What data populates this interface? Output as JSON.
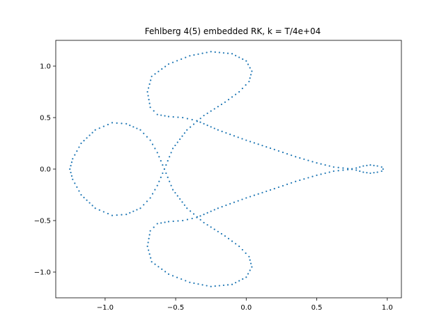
{
  "chart_data": {
    "type": "scatter",
    "title": "Fehlberg 4(5) embedded RK, k = T/4e+04",
    "xlabel": "",
    "ylabel": "",
    "xlim": [
      -1.35,
      1.1
    ],
    "ylim": [
      -1.25,
      1.25
    ],
    "x_ticks": [
      {
        "value": -1.0,
        "label": "−1.0"
      },
      {
        "value": -0.5,
        "label": "−0.5"
      },
      {
        "value": 0.0,
        "label": "0.0"
      },
      {
        "value": 0.5,
        "label": "0.5"
      },
      {
        "value": 1.0,
        "label": "1.0"
      }
    ],
    "y_ticks": [
      {
        "value": -1.0,
        "label": "−1.0"
      },
      {
        "value": -0.5,
        "label": "−0.5"
      },
      {
        "value": 0.0,
        "label": "0.0"
      },
      {
        "value": 0.5,
        "label": "0.5"
      },
      {
        "value": 1.0,
        "label": "1.0"
      }
    ],
    "grid": false,
    "color": "#1f77b4",
    "series": [
      {
        "points": [
          [
            0.97,
            0.0
          ],
          [
            0.96,
            0.02
          ],
          [
            0.93,
            0.03
          ],
          [
            0.88,
            0.04
          ],
          [
            0.83,
            0.03
          ],
          [
            0.78,
            0.01
          ],
          [
            0.72,
            -0.005
          ],
          [
            0.62,
            -0.02
          ],
          [
            0.5,
            -0.06
          ],
          [
            0.35,
            -0.12
          ],
          [
            0.2,
            -0.19
          ],
          [
            0.0,
            -0.28
          ],
          [
            -0.2,
            -0.38
          ],
          [
            -0.35,
            -0.47
          ],
          [
            -0.45,
            -0.5
          ],
          [
            -0.55,
            -0.51
          ],
          [
            -0.63,
            -0.53
          ],
          [
            -0.68,
            -0.6
          ],
          [
            -0.7,
            -0.75
          ],
          [
            -0.67,
            -0.9
          ],
          [
            -0.55,
            -1.02
          ],
          [
            -0.4,
            -1.1
          ],
          [
            -0.25,
            -1.14
          ],
          [
            -0.1,
            -1.12
          ],
          [
            0.0,
            -1.05
          ],
          [
            0.04,
            -0.95
          ],
          [
            0.02,
            -0.85
          ],
          [
            -0.05,
            -0.75
          ],
          [
            -0.15,
            -0.65
          ],
          [
            -0.3,
            -0.52
          ],
          [
            -0.42,
            -0.38
          ],
          [
            -0.52,
            -0.2
          ],
          [
            -0.58,
            0.0
          ],
          [
            -0.63,
            0.16
          ],
          [
            -0.68,
            0.28
          ],
          [
            -0.75,
            0.38
          ],
          [
            -0.85,
            0.44
          ],
          [
            -0.95,
            0.45
          ],
          [
            -1.07,
            0.38
          ],
          [
            -1.17,
            0.25
          ],
          [
            -1.23,
            0.1
          ],
          [
            -1.25,
            0.0
          ],
          [
            -1.23,
            -0.1
          ],
          [
            -1.17,
            -0.25
          ],
          [
            -1.07,
            -0.38
          ],
          [
            -0.95,
            -0.45
          ],
          [
            -0.85,
            -0.44
          ],
          [
            -0.75,
            -0.38
          ],
          [
            -0.68,
            -0.28
          ],
          [
            -0.63,
            -0.16
          ],
          [
            -0.58,
            0.0
          ],
          [
            -0.52,
            0.2
          ],
          [
            -0.42,
            0.38
          ],
          [
            -0.3,
            0.52
          ],
          [
            -0.15,
            0.65
          ],
          [
            -0.05,
            0.75
          ],
          [
            0.02,
            0.85
          ],
          [
            0.04,
            0.95
          ],
          [
            0.0,
            1.05
          ],
          [
            -0.1,
            1.12
          ],
          [
            -0.25,
            1.14
          ],
          [
            -0.4,
            1.1
          ],
          [
            -0.55,
            1.02
          ],
          [
            -0.67,
            0.9
          ],
          [
            -0.7,
            0.75
          ],
          [
            -0.68,
            0.6
          ],
          [
            -0.63,
            0.53
          ],
          [
            -0.55,
            0.51
          ],
          [
            -0.45,
            0.5
          ],
          [
            -0.35,
            0.47
          ],
          [
            -0.2,
            0.38
          ],
          [
            0.0,
            0.28
          ],
          [
            0.2,
            0.19
          ],
          [
            0.35,
            0.12
          ],
          [
            0.5,
            0.06
          ],
          [
            0.62,
            0.02
          ],
          [
            0.72,
            0.005
          ],
          [
            0.78,
            -0.01
          ],
          [
            0.83,
            -0.03
          ],
          [
            0.88,
            -0.04
          ],
          [
            0.93,
            -0.03
          ],
          [
            0.96,
            -0.02
          ],
          [
            0.97,
            0.0
          ]
        ]
      }
    ]
  }
}
